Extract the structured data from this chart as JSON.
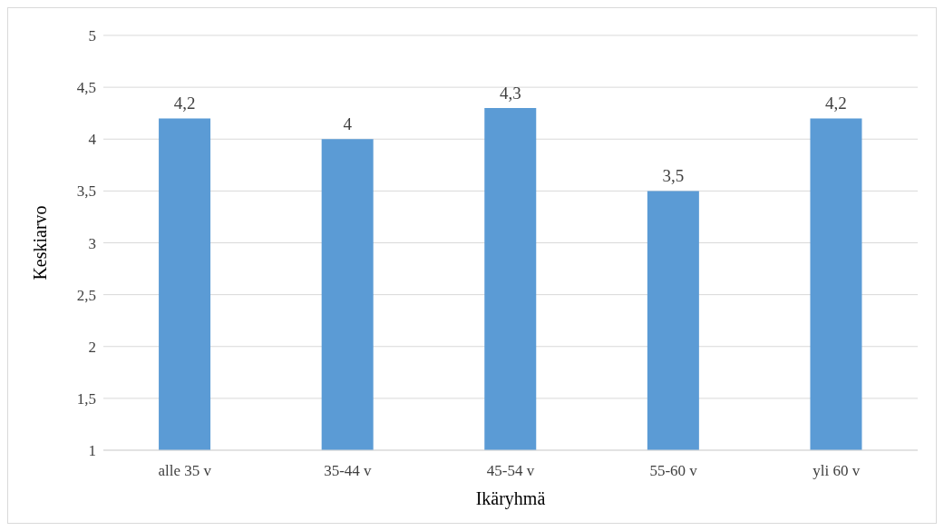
{
  "chart_data": {
    "type": "bar",
    "xlabel": "Ikäryhmä",
    "ylabel": "Keskiarvo",
    "categories": [
      "alle 35 v",
      "35-44 v",
      "45-54 v",
      "55-60 v",
      "yli 60 v"
    ],
    "values": [
      4.2,
      4,
      4.3,
      3.5,
      4.2
    ],
    "value_labels": [
      "4,2",
      "4",
      "4,3",
      "3,5",
      "4,2"
    ],
    "color": "#5b9bd5",
    "ylim": [
      1,
      5
    ],
    "yticks": [
      1,
      {
        "value": 1.5,
        "label": "1,5"
      },
      2,
      {
        "value": 2.5,
        "label": "2,5"
      },
      3,
      {
        "value": 3.5,
        "label": "3,5"
      },
      4,
      {
        "value": 4.5,
        "label": "4,5"
      },
      5
    ],
    "grid": "y"
  }
}
